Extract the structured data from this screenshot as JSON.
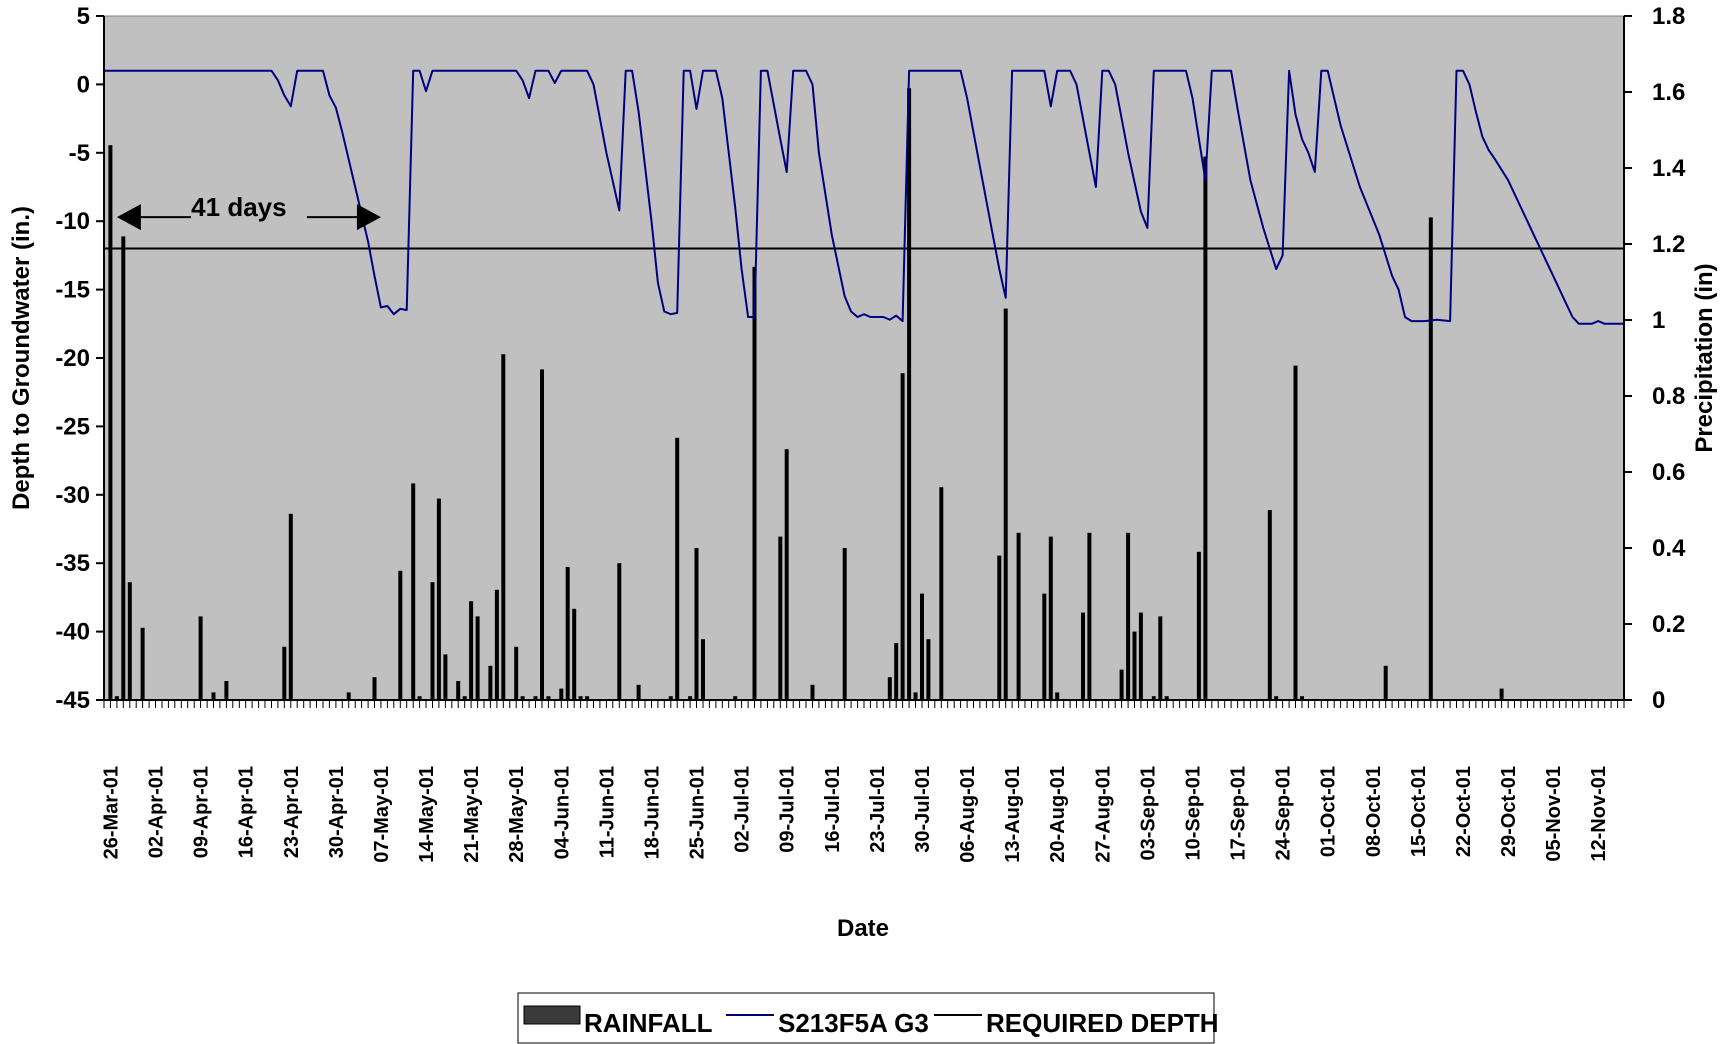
{
  "chart_data": {
    "type": "bar+line",
    "xlabel": "Date",
    "ylabel_left": "Depth to Groundwater (in.)",
    "ylabel_right": "Precipitation (in)",
    "x_range": [
      "2001-03-26",
      "2001-11-17"
    ],
    "ylim_left": [
      -45,
      5
    ],
    "ylim_right": [
      0,
      1.8
    ],
    "y_ticks_left": [
      "5",
      "0",
      "-5",
      "-10",
      "-15",
      "-20",
      "-25",
      "-30",
      "-35",
      "-40",
      "-45"
    ],
    "y_ticks_right": [
      "1.8",
      "1.6",
      "1.4",
      "1.2",
      "1",
      "0.8",
      "0.6",
      "0.4",
      "0.2",
      "0"
    ],
    "x_tick_labels": [
      "26-Mar-01",
      "02-Apr-01",
      "09-Apr-01",
      "16-Apr-01",
      "23-Apr-01",
      "30-Apr-01",
      "07-May-01",
      "14-May-01",
      "21-May-01",
      "28-May-01",
      "04-Jun-01",
      "11-Jun-01",
      "18-Jun-01",
      "25-Jun-01",
      "02-Jul-01",
      "09-Jul-01",
      "16-Jul-01",
      "23-Jul-01",
      "30-Jul-01",
      "06-Aug-01",
      "13-Aug-01",
      "20-Aug-01",
      "27-Aug-01",
      "03-Sep-01",
      "10-Sep-01",
      "17-Sep-01",
      "24-Sep-01",
      "01-Oct-01",
      "08-Oct-01",
      "15-Oct-01",
      "22-Oct-01",
      "29-Oct-01",
      "05-Nov-01",
      "12-Nov-01"
    ],
    "grid": false,
    "plot_background": "#c0c0c0",
    "legend_position": "bottom-center",
    "series": [
      {
        "name": "RAINFALL",
        "type": "bar",
        "axis": "right",
        "color": "#000000",
        "points": [
          [
            "2001-03-27",
            1.46
          ],
          [
            "2001-03-28",
            0.01
          ],
          [
            "2001-03-29",
            1.22
          ],
          [
            "2001-03-30",
            0.31
          ],
          [
            "2001-04-01",
            0.19
          ],
          [
            "2001-04-10",
            0.22
          ],
          [
            "2001-04-12",
            0.02
          ],
          [
            "2001-04-14",
            0.05
          ],
          [
            "2001-04-23",
            0.14
          ],
          [
            "2001-04-24",
            0.49
          ],
          [
            "2001-05-03",
            0.02
          ],
          [
            "2001-05-07",
            0.06
          ],
          [
            "2001-05-11",
            0.34
          ],
          [
            "2001-05-13",
            0.57
          ],
          [
            "2001-05-14",
            0.01
          ],
          [
            "2001-05-16",
            0.31
          ],
          [
            "2001-05-17",
            0.53
          ],
          [
            "2001-05-18",
            0.12
          ],
          [
            "2001-05-20",
            0.05
          ],
          [
            "2001-05-21",
            0.01
          ],
          [
            "2001-05-22",
            0.26
          ],
          [
            "2001-05-23",
            0.22
          ],
          [
            "2001-05-25",
            0.09
          ],
          [
            "2001-05-26",
            0.29
          ],
          [
            "2001-05-27",
            0.91
          ],
          [
            "2001-05-29",
            0.14
          ],
          [
            "2001-05-30",
            0.01
          ],
          [
            "2001-06-01",
            0.01
          ],
          [
            "2001-06-02",
            0.87
          ],
          [
            "2001-06-03",
            0.01
          ],
          [
            "2001-06-05",
            0.03
          ],
          [
            "2001-06-06",
            0.35
          ],
          [
            "2001-06-07",
            0.24
          ],
          [
            "2001-06-08",
            0.01
          ],
          [
            "2001-06-09",
            0.01
          ],
          [
            "2001-06-14",
            0.36
          ],
          [
            "2001-06-17",
            0.04
          ],
          [
            "2001-06-22",
            0.01
          ],
          [
            "2001-06-23",
            0.69
          ],
          [
            "2001-06-25",
            0.01
          ],
          [
            "2001-06-26",
            0.4
          ],
          [
            "2001-06-27",
            0.16
          ],
          [
            "2001-07-02",
            0.01
          ],
          [
            "2001-07-05",
            1.14
          ],
          [
            "2001-07-09",
            0.43
          ],
          [
            "2001-07-10",
            0.66
          ],
          [
            "2001-07-14",
            0.04
          ],
          [
            "2001-07-19",
            0.4
          ],
          [
            "2001-07-26",
            0.06
          ],
          [
            "2001-07-27",
            0.15
          ],
          [
            "2001-07-28",
            0.86
          ],
          [
            "2001-07-29",
            1.61
          ],
          [
            "2001-07-30",
            0.02
          ],
          [
            "2001-07-31",
            0.28
          ],
          [
            "2001-08-01",
            0.16
          ],
          [
            "2001-08-03",
            0.56
          ],
          [
            "2001-08-12",
            0.38
          ],
          [
            "2001-08-13",
            1.03
          ],
          [
            "2001-08-15",
            0.44
          ],
          [
            "2001-08-19",
            0.28
          ],
          [
            "2001-08-20",
            0.43
          ],
          [
            "2001-08-21",
            0.02
          ],
          [
            "2001-08-25",
            0.23
          ],
          [
            "2001-08-26",
            0.44
          ],
          [
            "2001-08-31",
            0.08
          ],
          [
            "2001-09-01",
            0.44
          ],
          [
            "2001-09-02",
            0.18
          ],
          [
            "2001-09-03",
            0.23
          ],
          [
            "2001-09-05",
            0.01
          ],
          [
            "2001-09-06",
            0.22
          ],
          [
            "2001-09-07",
            0.01
          ],
          [
            "2001-09-12",
            0.39
          ],
          [
            "2001-09-13",
            1.43
          ],
          [
            "2001-09-23",
            0.5
          ],
          [
            "2001-09-24",
            0.01
          ],
          [
            "2001-09-27",
            0.88
          ],
          [
            "2001-09-28",
            0.01
          ],
          [
            "2001-10-11",
            0.09
          ],
          [
            "2001-10-18",
            1.27
          ],
          [
            "2001-10-29",
            0.03
          ]
        ]
      },
      {
        "name": "S213F5A G3",
        "type": "line",
        "axis": "left",
        "color": "#000080",
        "points": [
          [
            "2001-03-26",
            1
          ],
          [
            "2001-04-21",
            1
          ],
          [
            "2001-04-22",
            0.3
          ],
          [
            "2001-04-23",
            -0.8
          ],
          [
            "2001-04-24",
            -1.6
          ],
          [
            "2001-04-25",
            1
          ],
          [
            "2001-04-29",
            1
          ],
          [
            "2001-04-30",
            -0.8
          ],
          [
            "2001-05-01",
            -1.7
          ],
          [
            "2001-05-02",
            -3.5
          ],
          [
            "2001-05-04",
            -7.5
          ],
          [
            "2001-05-06",
            -11.5
          ],
          [
            "2001-05-07",
            -14
          ],
          [
            "2001-05-08",
            -16.3
          ],
          [
            "2001-05-09",
            -16.2
          ],
          [
            "2001-05-10",
            -16.8
          ],
          [
            "2001-05-11",
            -16.4
          ],
          [
            "2001-05-12",
            -16.5
          ],
          [
            "2001-05-13",
            1
          ],
          [
            "2001-05-14",
            1
          ],
          [
            "2001-05-15",
            -0.5
          ],
          [
            "2001-05-16",
            1
          ],
          [
            "2001-05-29",
            1
          ],
          [
            "2001-05-30",
            0.3
          ],
          [
            "2001-05-31",
            -1
          ],
          [
            "2001-06-01",
            1
          ],
          [
            "2001-06-03",
            1
          ],
          [
            "2001-06-04",
            0.1
          ],
          [
            "2001-06-05",
            1
          ],
          [
            "2001-06-09",
            1
          ],
          [
            "2001-06-10",
            0
          ],
          [
            "2001-06-12",
            -5
          ],
          [
            "2001-06-14",
            -9.2
          ],
          [
            "2001-06-15",
            1
          ],
          [
            "2001-06-16",
            1
          ],
          [
            "2001-06-17",
            -2
          ],
          [
            "2001-06-19",
            -10
          ],
          [
            "2001-06-20",
            -14.5
          ],
          [
            "2001-06-21",
            -16.6
          ],
          [
            "2001-06-22",
            -16.8
          ],
          [
            "2001-06-23",
            -16.7
          ],
          [
            "2001-06-24",
            1
          ],
          [
            "2001-06-25",
            1
          ],
          [
            "2001-06-26",
            -1.8
          ],
          [
            "2001-06-27",
            1
          ],
          [
            "2001-06-29",
            1
          ],
          [
            "2001-06-30",
            -1
          ],
          [
            "2001-07-02",
            -9
          ],
          [
            "2001-07-03",
            -13.5
          ],
          [
            "2001-07-04",
            -17
          ],
          [
            "2001-07-05",
            -17
          ],
          [
            "2001-07-06",
            1
          ],
          [
            "2001-07-07",
            1
          ],
          [
            "2001-07-09",
            -4
          ],
          [
            "2001-07-10",
            -6.4
          ],
          [
            "2001-07-11",
            1
          ],
          [
            "2001-07-13",
            1
          ],
          [
            "2001-07-14",
            0
          ],
          [
            "2001-07-15",
            -5
          ],
          [
            "2001-07-17",
            -11
          ],
          [
            "2001-07-19",
            -15.5
          ],
          [
            "2001-07-20",
            -16.6
          ],
          [
            "2001-07-21",
            -17
          ],
          [
            "2001-07-22",
            -16.8
          ],
          [
            "2001-07-23",
            -17
          ],
          [
            "2001-07-25",
            -17
          ],
          [
            "2001-07-26",
            -17.2
          ],
          [
            "2001-07-27",
            -16.9
          ],
          [
            "2001-07-28",
            -17.3
          ],
          [
            "2001-07-29",
            1
          ],
          [
            "2001-08-06",
            1
          ],
          [
            "2001-08-07",
            -1
          ],
          [
            "2001-08-09",
            -6
          ],
          [
            "2001-08-11",
            -11
          ],
          [
            "2001-08-12",
            -13.5
          ],
          [
            "2001-08-13",
            -15.6
          ],
          [
            "2001-08-14",
            1
          ],
          [
            "2001-08-19",
            1
          ],
          [
            "2001-08-20",
            -1.6
          ],
          [
            "2001-08-21",
            1
          ],
          [
            "2001-08-23",
            1
          ],
          [
            "2001-08-24",
            0
          ],
          [
            "2001-08-26",
            -5
          ],
          [
            "2001-08-27",
            -7.5
          ],
          [
            "2001-08-28",
            1
          ],
          [
            "2001-08-29",
            1
          ],
          [
            "2001-08-30",
            0
          ],
          [
            "2001-09-01",
            -5
          ],
          [
            "2001-09-03",
            -9.3
          ],
          [
            "2001-09-04",
            -10.5
          ],
          [
            "2001-09-05",
            1
          ],
          [
            "2001-09-10",
            1
          ],
          [
            "2001-09-11",
            -1
          ],
          [
            "2001-09-13",
            -7
          ],
          [
            "2001-09-14",
            1
          ],
          [
            "2001-09-17",
            1
          ],
          [
            "2001-09-18",
            -1.8
          ],
          [
            "2001-09-20",
            -7
          ],
          [
            "2001-09-22",
            -10.5
          ],
          [
            "2001-09-24",
            -13.5
          ],
          [
            "2001-09-25",
            -12.5
          ],
          [
            "2001-09-26",
            1
          ],
          [
            "2001-09-27",
            -2.2
          ],
          [
            "2001-09-28",
            -4
          ],
          [
            "2001-09-29",
            -5
          ],
          [
            "2001-09-30",
            -6.4
          ],
          [
            "2001-10-01",
            1
          ],
          [
            "2001-10-02",
            1
          ],
          [
            "2001-10-04",
            -3
          ],
          [
            "2001-10-07",
            -7.5
          ],
          [
            "2001-10-10",
            -11
          ],
          [
            "2001-10-12",
            -14
          ],
          [
            "2001-10-13",
            -15
          ],
          [
            "2001-10-14",
            -17
          ],
          [
            "2001-10-15",
            -17.3
          ],
          [
            "2001-10-17",
            -17.3
          ],
          [
            "2001-10-19",
            -17.2
          ],
          [
            "2001-10-21",
            -17.3
          ],
          [
            "2001-10-22",
            1
          ],
          [
            "2001-10-23",
            1
          ],
          [
            "2001-10-24",
            0
          ],
          [
            "2001-10-25",
            -2
          ],
          [
            "2001-10-26",
            -3.8
          ],
          [
            "2001-10-27",
            -4.8
          ],
          [
            "2001-10-28",
            -5.5
          ],
          [
            "2001-10-30",
            -7
          ],
          [
            "2001-10-31",
            -8
          ],
          [
            "2001-11-01",
            -9
          ],
          [
            "2001-11-02",
            -10
          ],
          [
            "2001-11-03",
            -11
          ],
          [
            "2001-11-04",
            -12
          ],
          [
            "2001-11-05",
            -13
          ],
          [
            "2001-11-06",
            -14
          ],
          [
            "2001-11-07",
            -15
          ],
          [
            "2001-11-08",
            -16
          ],
          [
            "2001-11-09",
            -17
          ],
          [
            "2001-11-10",
            -17.5
          ],
          [
            "2001-11-12",
            -17.5
          ],
          [
            "2001-11-13",
            -17.3
          ],
          [
            "2001-11-14",
            -17.5
          ],
          [
            "2001-11-17",
            -17.5
          ]
        ]
      },
      {
        "name": "REQUIRED DEPTH",
        "type": "line",
        "axis": "left",
        "color": "#000000",
        "points": [
          [
            "2001-03-26",
            -12
          ],
          [
            "2001-11-17",
            -12
          ]
        ]
      }
    ],
    "annotations": [
      {
        "text": "41 days",
        "from": "2001-03-28",
        "to": "2001-05-08",
        "y": -9.7
      }
    ]
  },
  "legend": {
    "items": [
      {
        "label": "RAINFALL",
        "symbol": "bar",
        "color": "#3a3a3a"
      },
      {
        "label": "S213F5A G3",
        "symbol": "line",
        "color": "#000080"
      },
      {
        "label": "REQUIRED DEPTH",
        "symbol": "line",
        "color": "#000000"
      }
    ]
  }
}
